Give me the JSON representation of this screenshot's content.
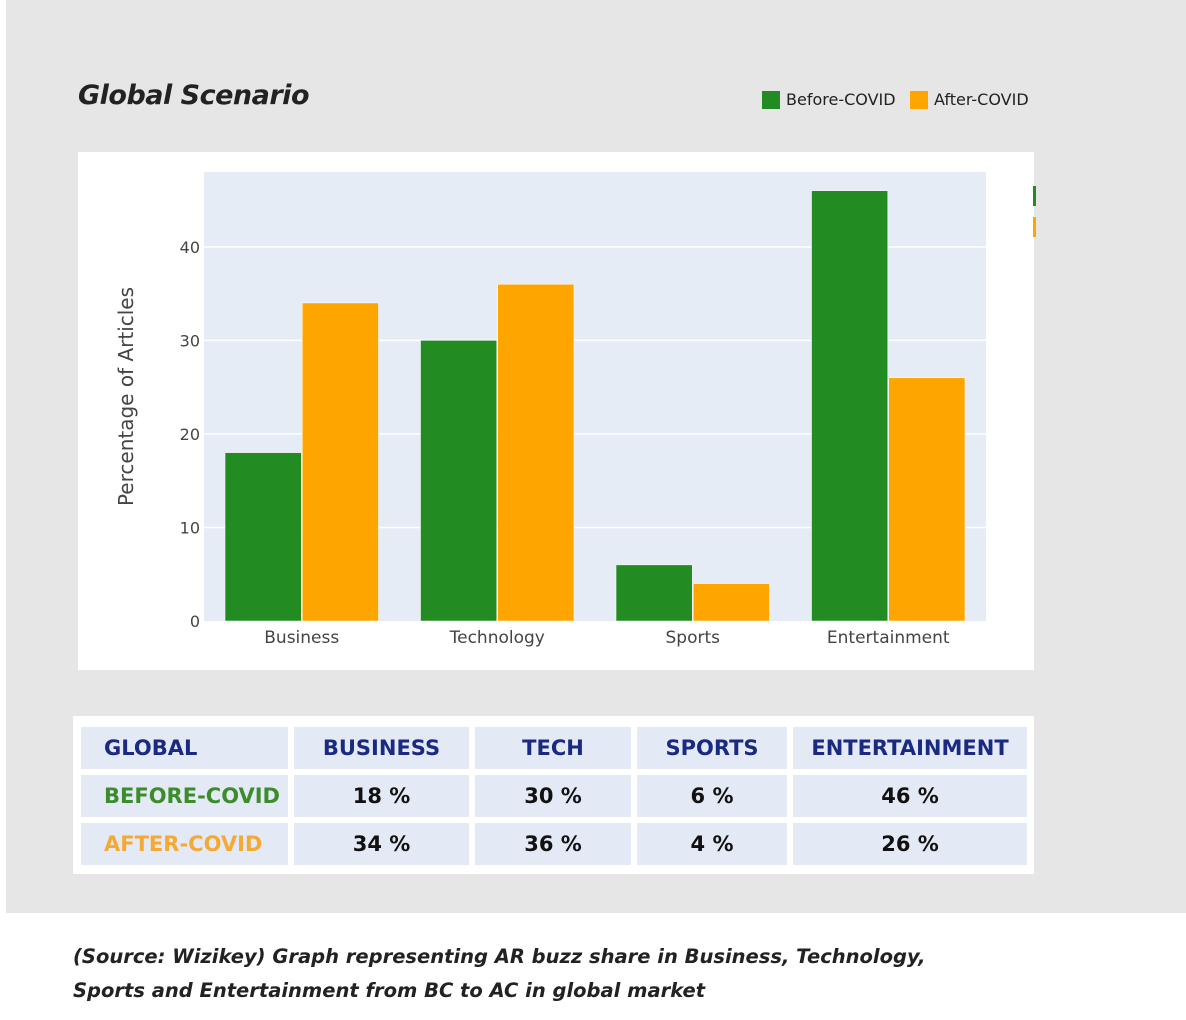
{
  "page": {
    "title": "Global Scenario",
    "caption_line1": "(Source: Wizikey) Graph representing AR buzz share in Business, Technology,",
    "caption_line2": "Sports and Entertainment from BC to AC in global market"
  },
  "colors": {
    "before": "#228b22",
    "after": "#ffa500",
    "plot_bg": "#e5ecf6",
    "header_text": "#1a2a80",
    "before_label": "#3c8c2c",
    "after_label": "#f5a935"
  },
  "legend": {
    "before": "Before-COVID",
    "after": "After-COVID"
  },
  "chart_data": {
    "type": "bar",
    "categories": [
      "Business",
      "Technology",
      "Sports",
      "Entertainment"
    ],
    "series": [
      {
        "name": "Before-COVID",
        "values": [
          18,
          30,
          6,
          46
        ]
      },
      {
        "name": "After-COVID",
        "values": [
          34,
          36,
          4,
          26
        ]
      }
    ],
    "title": "",
    "xlabel": "",
    "ylabel": "Percentage of Articles",
    "ylim": [
      0,
      48
    ],
    "yticks": [
      0,
      10,
      20,
      30,
      40
    ],
    "grid": true
  },
  "table": {
    "headers": [
      "GLOBAL",
      "BUSINESS",
      "TECH",
      "SPORTS",
      "ENTERTAINMENT"
    ],
    "rows": [
      {
        "label": "BEFORE-COVID",
        "cells": [
          "18 %",
          "30 %",
          "6 %",
          "46 %"
        ]
      },
      {
        "label": "AFTER-COVID",
        "cells": [
          "34 %",
          "36 %",
          "4 %",
          "26  %"
        ]
      }
    ]
  }
}
